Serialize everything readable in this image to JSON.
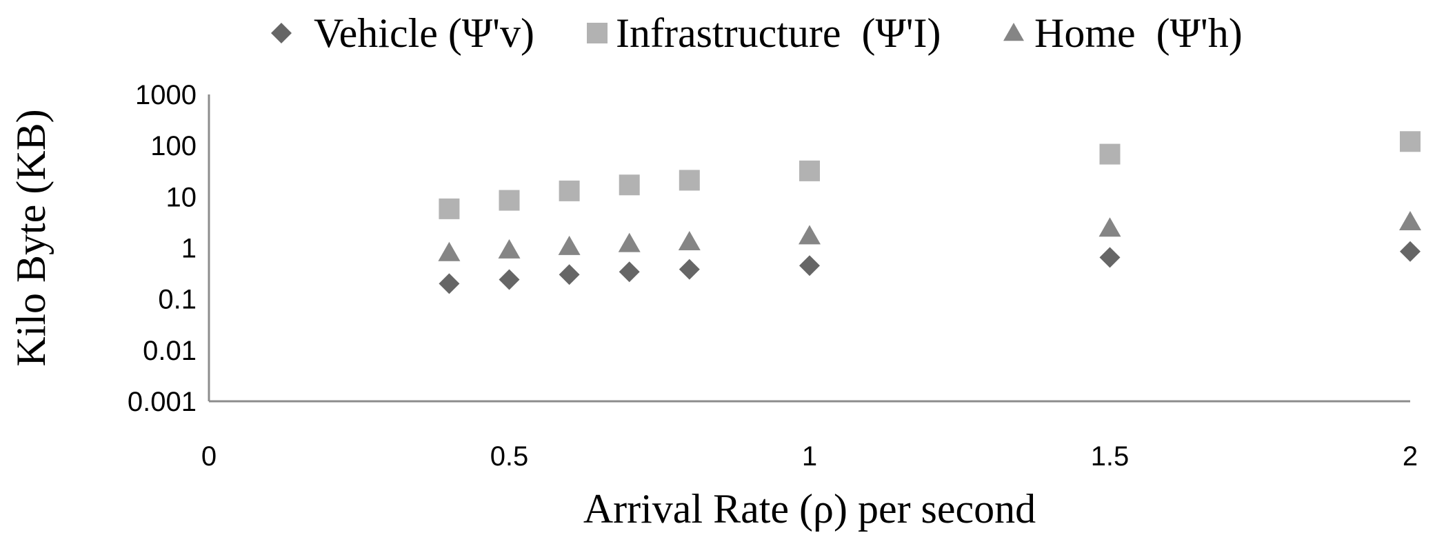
{
  "chart_data": {
    "type": "scatter",
    "title": "",
    "xlabel": "Arrival Rate (ρ) per second",
    "ylabel": "Kilo Byte (KB)",
    "x_scale": "linear",
    "y_scale": "log",
    "xlim": [
      0,
      2
    ],
    "ylim": [
      0.001,
      1000
    ],
    "x_ticks": [
      0,
      0.5,
      1,
      1.5,
      2
    ],
    "x_tick_labels": [
      "0",
      "0.5",
      "1",
      "1.5",
      "2"
    ],
    "y_ticks": [
      0.001,
      0.01,
      0.1,
      1,
      10,
      100,
      1000
    ],
    "y_tick_labels": [
      "0.001",
      "0.01",
      "0.1",
      "1",
      "10",
      "100",
      "1000"
    ],
    "grid": false,
    "legend_position": "top",
    "x": [
      0.4,
      0.5,
      0.6,
      0.7,
      0.8,
      1,
      1.5,
      2
    ],
    "series": [
      {
        "name": "Vehicle (Ψ'v)",
        "marker": "diamond",
        "color": "#666666",
        "values": [
          0.2,
          0.24,
          0.3,
          0.34,
          0.38,
          0.45,
          0.65,
          0.85
        ]
      },
      {
        "name": "Infrastructure  (Ψ'I)",
        "marker": "square",
        "color": "#b2b2b2",
        "values": [
          5.8,
          8.5,
          13,
          17,
          21,
          32,
          68,
          120
        ]
      },
      {
        "name": "Home  (Ψ'h)",
        "marker": "triangle",
        "color": "#858585",
        "values": [
          0.8,
          0.9,
          1.05,
          1.2,
          1.3,
          1.7,
          2.4,
          3.2
        ]
      }
    ]
  }
}
